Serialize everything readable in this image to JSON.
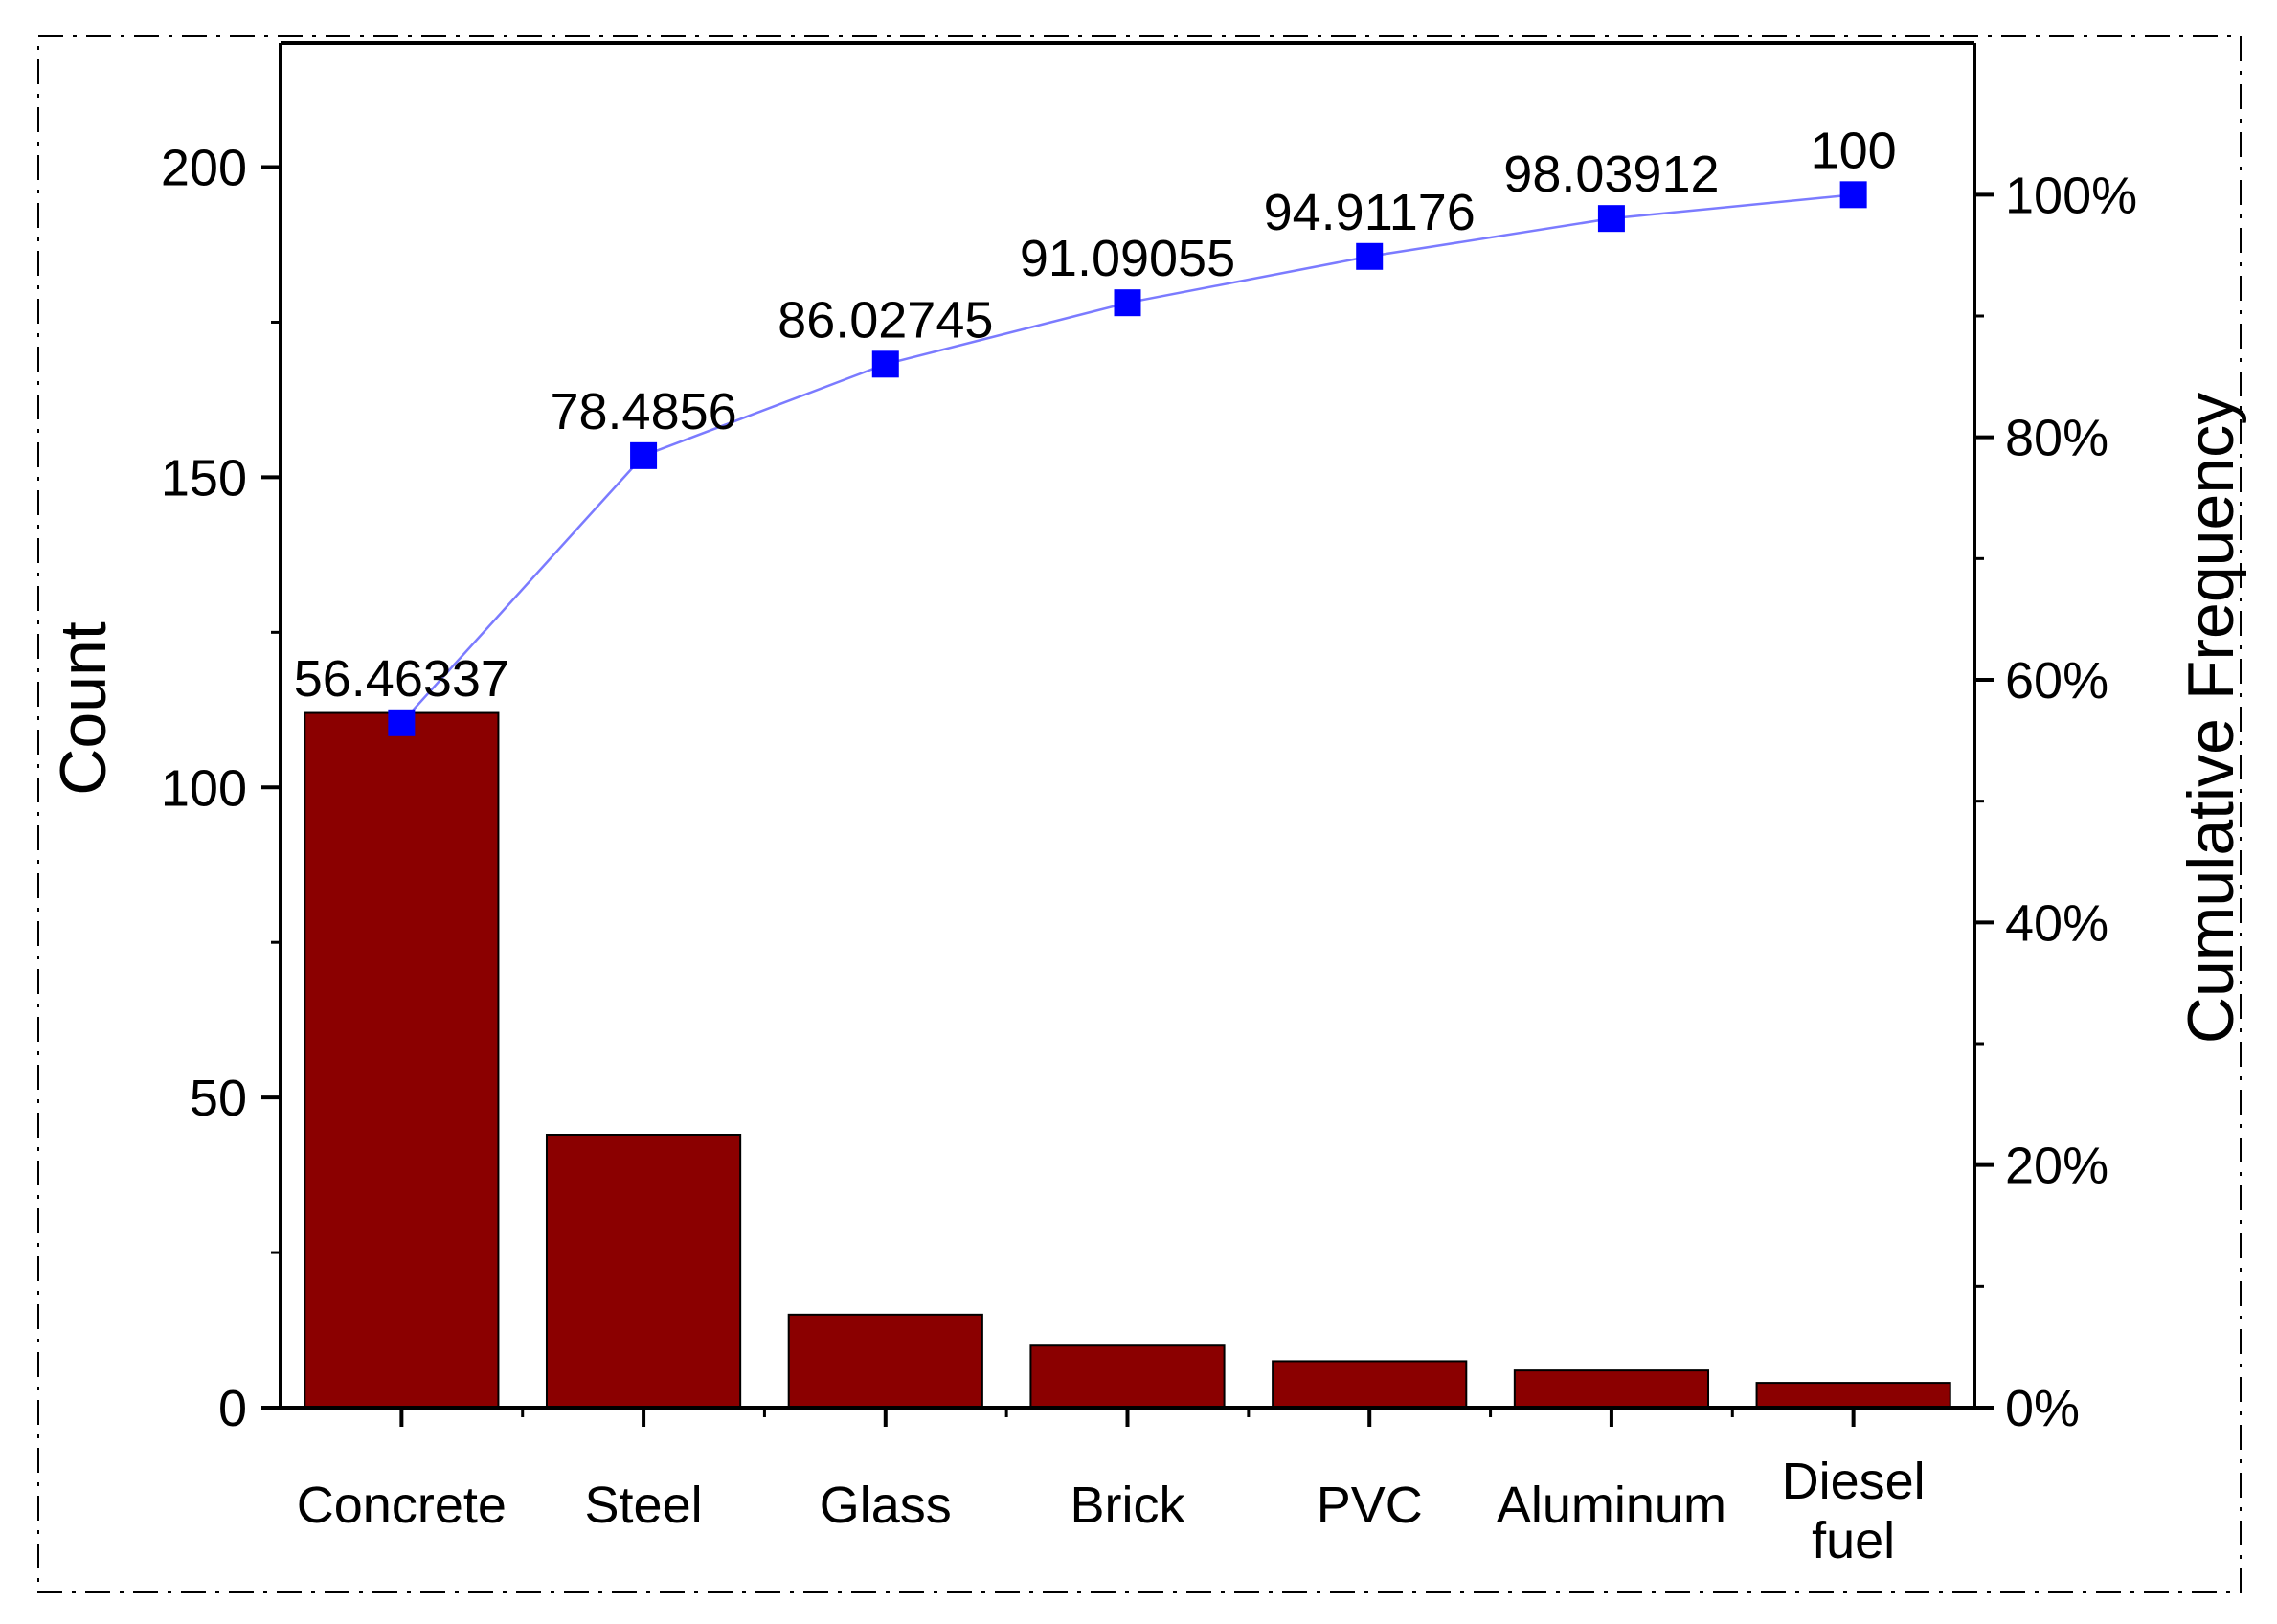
{
  "chart_data": {
    "type": "bar",
    "categories": [
      [
        "Concrete"
      ],
      [
        "Steel"
      ],
      [
        "Glass"
      ],
      [
        "Brick"
      ],
      [
        "PVC"
      ],
      [
        "Aluminum"
      ],
      [
        "Diesel",
        "fuel"
      ]
    ],
    "series": [
      {
        "kind": "bar",
        "axis": "left",
        "values": [
          112,
          44,
          15,
          10,
          7.5,
          6,
          4
        ]
      },
      {
        "kind": "line",
        "axis": "right",
        "values": [
          56.46337,
          78.4856,
          86.02745,
          91.09055,
          94.91176,
          98.03912,
          100
        ]
      }
    ],
    "data_labels": [
      "56.46337",
      "78.4856",
      "86.02745",
      "91.09055",
      "94.91176",
      "98.03912",
      "100"
    ],
    "ylabel": "Count",
    "ylabel_right": "Cumulative Frequency",
    "ylim": [
      0,
      220
    ],
    "ylim_right": [
      0,
      112.5
    ],
    "yticks": [
      0,
      50,
      100,
      150,
      200
    ],
    "yticks_right": [
      "0%",
      "20%",
      "40%",
      "60%",
      "80%",
      "100%"
    ],
    "yticks_right_values": [
      0,
      20,
      40,
      60,
      80,
      100
    ],
    "grid": false,
    "legend": "none",
    "colors": {
      "bar_fill": "#8B0000",
      "bar_stroke": "#000000",
      "line": "#7B7BFF",
      "marker": "#0000FF",
      "border_dash": "#000000"
    }
  }
}
